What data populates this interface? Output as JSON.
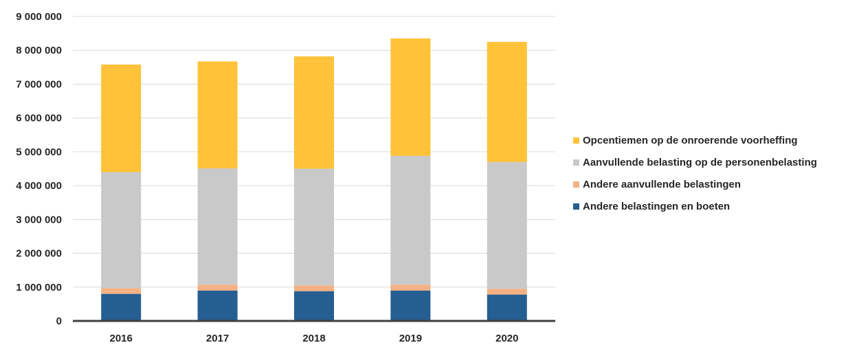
{
  "chart_data": {
    "type": "bar",
    "stacked": true,
    "categories": [
      "2016",
      "2017",
      "2018",
      "2019",
      "2020"
    ],
    "series": [
      {
        "name": "Andere belastingen en boeten",
        "color": "#255E91",
        "values": [
          800000,
          900000,
          880000,
          900000,
          780000
        ]
      },
      {
        "name": "Andere aanvullende belastingen",
        "color": "#F4B183",
        "values": [
          170000,
          170000,
          170000,
          170000,
          170000
        ]
      },
      {
        "name": "Aanvullende belasting op de personenbelasting",
        "color": "#C9C9C9",
        "values": [
          3430000,
          3440000,
          3450000,
          3810000,
          3750000
        ]
      },
      {
        "name": "Opcentiemen op de onroerende voorheffing",
        "color": "#FFC239",
        "values": [
          3180000,
          3160000,
          3320000,
          3470000,
          3550000
        ]
      }
    ],
    "y_ticks": [
      "0",
      "1 000 000",
      "2 000 000",
      "3 000 000",
      "4 000 000",
      "5 000 000",
      "6 000 000",
      "7 000 000",
      "8 000 000",
      "9 000 000"
    ],
    "ylim": [
      0,
      9000000
    ],
    "grid": true,
    "legend_position": "right",
    "legend_order": [
      3,
      2,
      1,
      0
    ]
  }
}
